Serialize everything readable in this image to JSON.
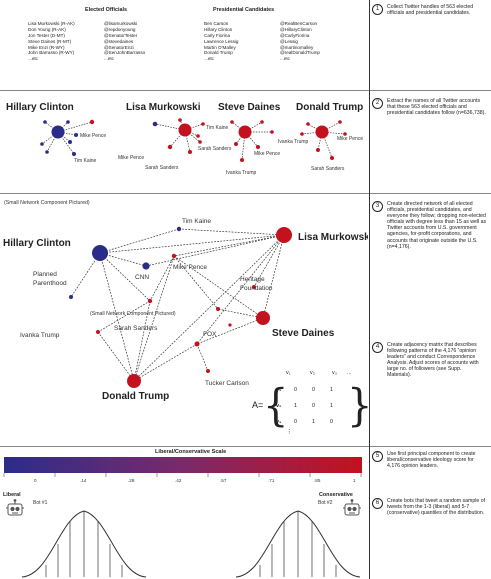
{
  "colors": {
    "democrat": "#2b2c8a",
    "republican": "#c3121e",
    "line": "#333333",
    "robot": "#666666"
  },
  "table": {
    "elected_header": "Elected Officials",
    "pres_header": "Presidential Candidates",
    "elected": [
      {
        "name": "Lisa Murkowski (R-AK)",
        "handle": "@lisamurkowski"
      },
      {
        "name": "Don Young (R-AK)",
        "handle": "@repdonyoung"
      },
      {
        "name": "Jon Tester (D-MT)",
        "handle": "@SenatorTester"
      },
      {
        "name": "Steve Daines (R-MT)",
        "handle": "@stevedaines"
      },
      {
        "name": "Mike Enzi (R-WY)",
        "handle": "@SenatorEnzi"
      },
      {
        "name": "John Barrasso (R-WY)",
        "handle": "@SenJohnBarrasso"
      },
      {
        "name": "...etc",
        "handle": "...etc"
      }
    ],
    "pres": [
      {
        "name": "Ben Carson",
        "handle": "@RealBenCarson"
      },
      {
        "name": "Hillary Clinton",
        "handle": "@HillaryClinton"
      },
      {
        "name": "Carly Fiorina",
        "handle": "@CarlyFiorina"
      },
      {
        "name": "Lawrence Lessig",
        "handle": "@Lessig"
      },
      {
        "name": "Martin O'Malley",
        "handle": "@martinomalley"
      },
      {
        "name": "Donald Trump",
        "handle": "@realDonaldTrump"
      },
      {
        "name": "...etc",
        "handle": "...etc"
      }
    ]
  },
  "egos": [
    {
      "title": "Hillary Clinton",
      "labels": [
        "Mike Pence",
        "Tim Kaine"
      ]
    },
    {
      "title": "Lisa Murkowski",
      "labels": [
        "Tim Kaine",
        "Mike Pence",
        "Sarah Sanders"
      ]
    },
    {
      "title": "Steve Daines",
      "labels": [
        "Sarah Sanders",
        "Mike Pence",
        "Ivanka Trump"
      ]
    },
    {
      "title": "Donald Trump",
      "labels": [
        "Ivanka Trump",
        "Mike Pence",
        "Sarah Sanders"
      ]
    }
  ],
  "network": {
    "caption": "(Small Network Component Pictured)",
    "sub_caption": "(Small Network Component Pictured)",
    "big": [
      "Hillary Clinton",
      "Lisa Murkowski",
      "Steve Daines",
      "Donald Trump"
    ],
    "small": [
      "Tim Kaine",
      "CNN",
      "Mike Pence",
      "Planned Parenthood",
      "Heritage Foundation",
      "Sarah Sanders",
      "FOX",
      "Ivanka Trump",
      "Tucker Carlson"
    ]
  },
  "matrix": {
    "label": "A=",
    "cols": [
      "v₁",
      "v₂",
      "v₃",
      "..."
    ],
    "rows": [
      {
        "name": "v₁",
        "vals": [
          "0",
          "0",
          "1"
        ]
      },
      {
        "name": "v₂",
        "vals": [
          "1",
          "0",
          "1"
        ]
      },
      {
        "name": "v₃",
        "vals": [
          "0",
          "1",
          "0"
        ]
      }
    ],
    "dots": "⠇"
  },
  "scale": {
    "title": "Liberal/Conservative Scale",
    "ticks": [
      "0",
      ".14",
      ".28",
      ".42",
      ".57",
      ".71",
      ".85",
      "1"
    ],
    "left": "Liberal",
    "right": "Conservative",
    "bot1": "Bot #1",
    "bot2": "Bot #2"
  },
  "steps": [
    {
      "num": "1",
      "text": "Collect Twitter handles of 563 elected officials and presidential candidates."
    },
    {
      "num": "2",
      "text": "Extract the names of all Twitter accounts that these 563 elected officials and presidential candidates follow (n=636,738)."
    },
    {
      "num": "3",
      "text": "Create directed network of all elected officials, presidential candidates, and everyone they follow; dropping non-elected officials with degree less than 15 as well as Twitter accounts from U.S. government agencies, for-profit corporations, and accounts that originate outside the U.S. (n=4,176)."
    },
    {
      "num": "4",
      "text": "Create adjacency matrix that describes following patterns of the 4,176 “opinion leaders” and conduct Correspondence Analysis. Adjust scores of accounts with large no. of followers (see Supp. Materials)."
    },
    {
      "num": "5",
      "text": "Use first principal component to create liberal/conservative ideology score for 4,176 opinion leaders."
    },
    {
      "num": "6",
      "text": "Create bots that tweet a random sample of tweets from the 1-3 (liberal) and 5-7 (conservative) quantiles of the distribution."
    }
  ]
}
